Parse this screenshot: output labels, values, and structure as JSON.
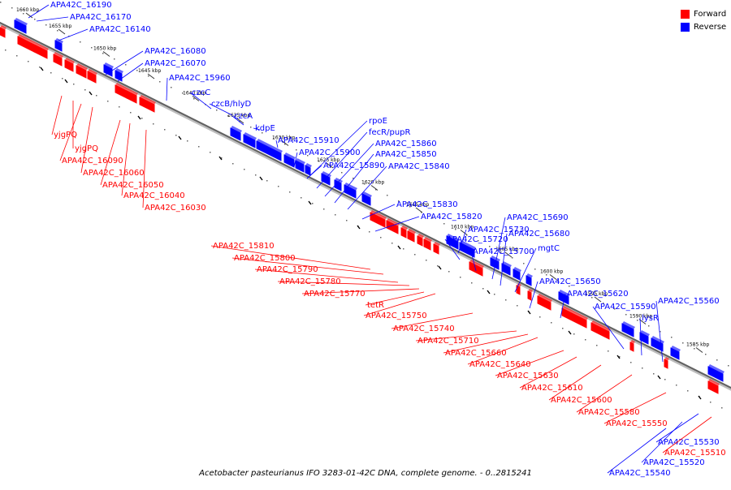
{
  "caption": "Acetobacter pasteurianus IFO 3283-01-42C DNA, complete genome. - 0..2815241",
  "colors": {
    "forward": "#ff0000",
    "reverse": "#0000ff",
    "backbone": "#808080"
  },
  "legend": [
    {
      "label": "Forward",
      "color": "#ff0000"
    },
    {
      "label": "Reverse",
      "color": "#0000ff"
    }
  ],
  "ticks": [
    "1660 kbp",
    "1655 kbp",
    "1650 kbp",
    "1645 kbp",
    "1640 kbp",
    "1635 kbp",
    "1630 kbp",
    "1625 kbp",
    "1620 kbp",
    "1615 kbp",
    "1610 kbp",
    "1605 kbp",
    "1600 kbp",
    "1595 kbp",
    "1590 kbp",
    "1585 kbp"
  ],
  "reverse_labels": [
    "APA42C_16190",
    "APA42C_16170",
    "APA42C_16140",
    "APA42C_16080",
    "APA42C_16070",
    "APA42C_15960",
    "czcC",
    "czcB/hlyD",
    "czcA",
    "kdpE",
    "APA42C_15910",
    "APA42C_15900",
    "APA42C_15890",
    "rpoE",
    "fecR/pupR",
    "APA42C_15860",
    "APA42C_15850",
    "APA42C_15840",
    "APA42C_15830",
    "APA42C_15820",
    "APA42C_15730",
    "APA42C_15720",
    "APA42C_15700",
    "APA42C_15690",
    "APA42C_15680",
    "mgtC",
    "APA42C_15650",
    "APA42C_15620",
    "APA42C_15590",
    "lysR",
    "APA42C_15560",
    "APA42C_15530",
    "APA42C_15520",
    "APA42C_15540"
  ],
  "forward_labels": [
    "yjgPQ",
    "yjgPQ",
    "APA42C_16090",
    "APA42C_16060",
    "APA42C_16050",
    "APA42C_16040",
    "APA42C_16030",
    "APA42C_15810",
    "APA42C_15800",
    "APA42C_15790",
    "APA42C_15780",
    "APA42C_15770",
    "tetR",
    "APA42C_15750",
    "APA42C_15740",
    "APA42C_15710",
    "APA42C_15660",
    "APA42C_15640",
    "APA42C_15630",
    "APA42C_15610",
    "APA42C_15600",
    "APA42C_15580",
    "APA42C_15550",
    "APA42C_15510"
  ]
}
